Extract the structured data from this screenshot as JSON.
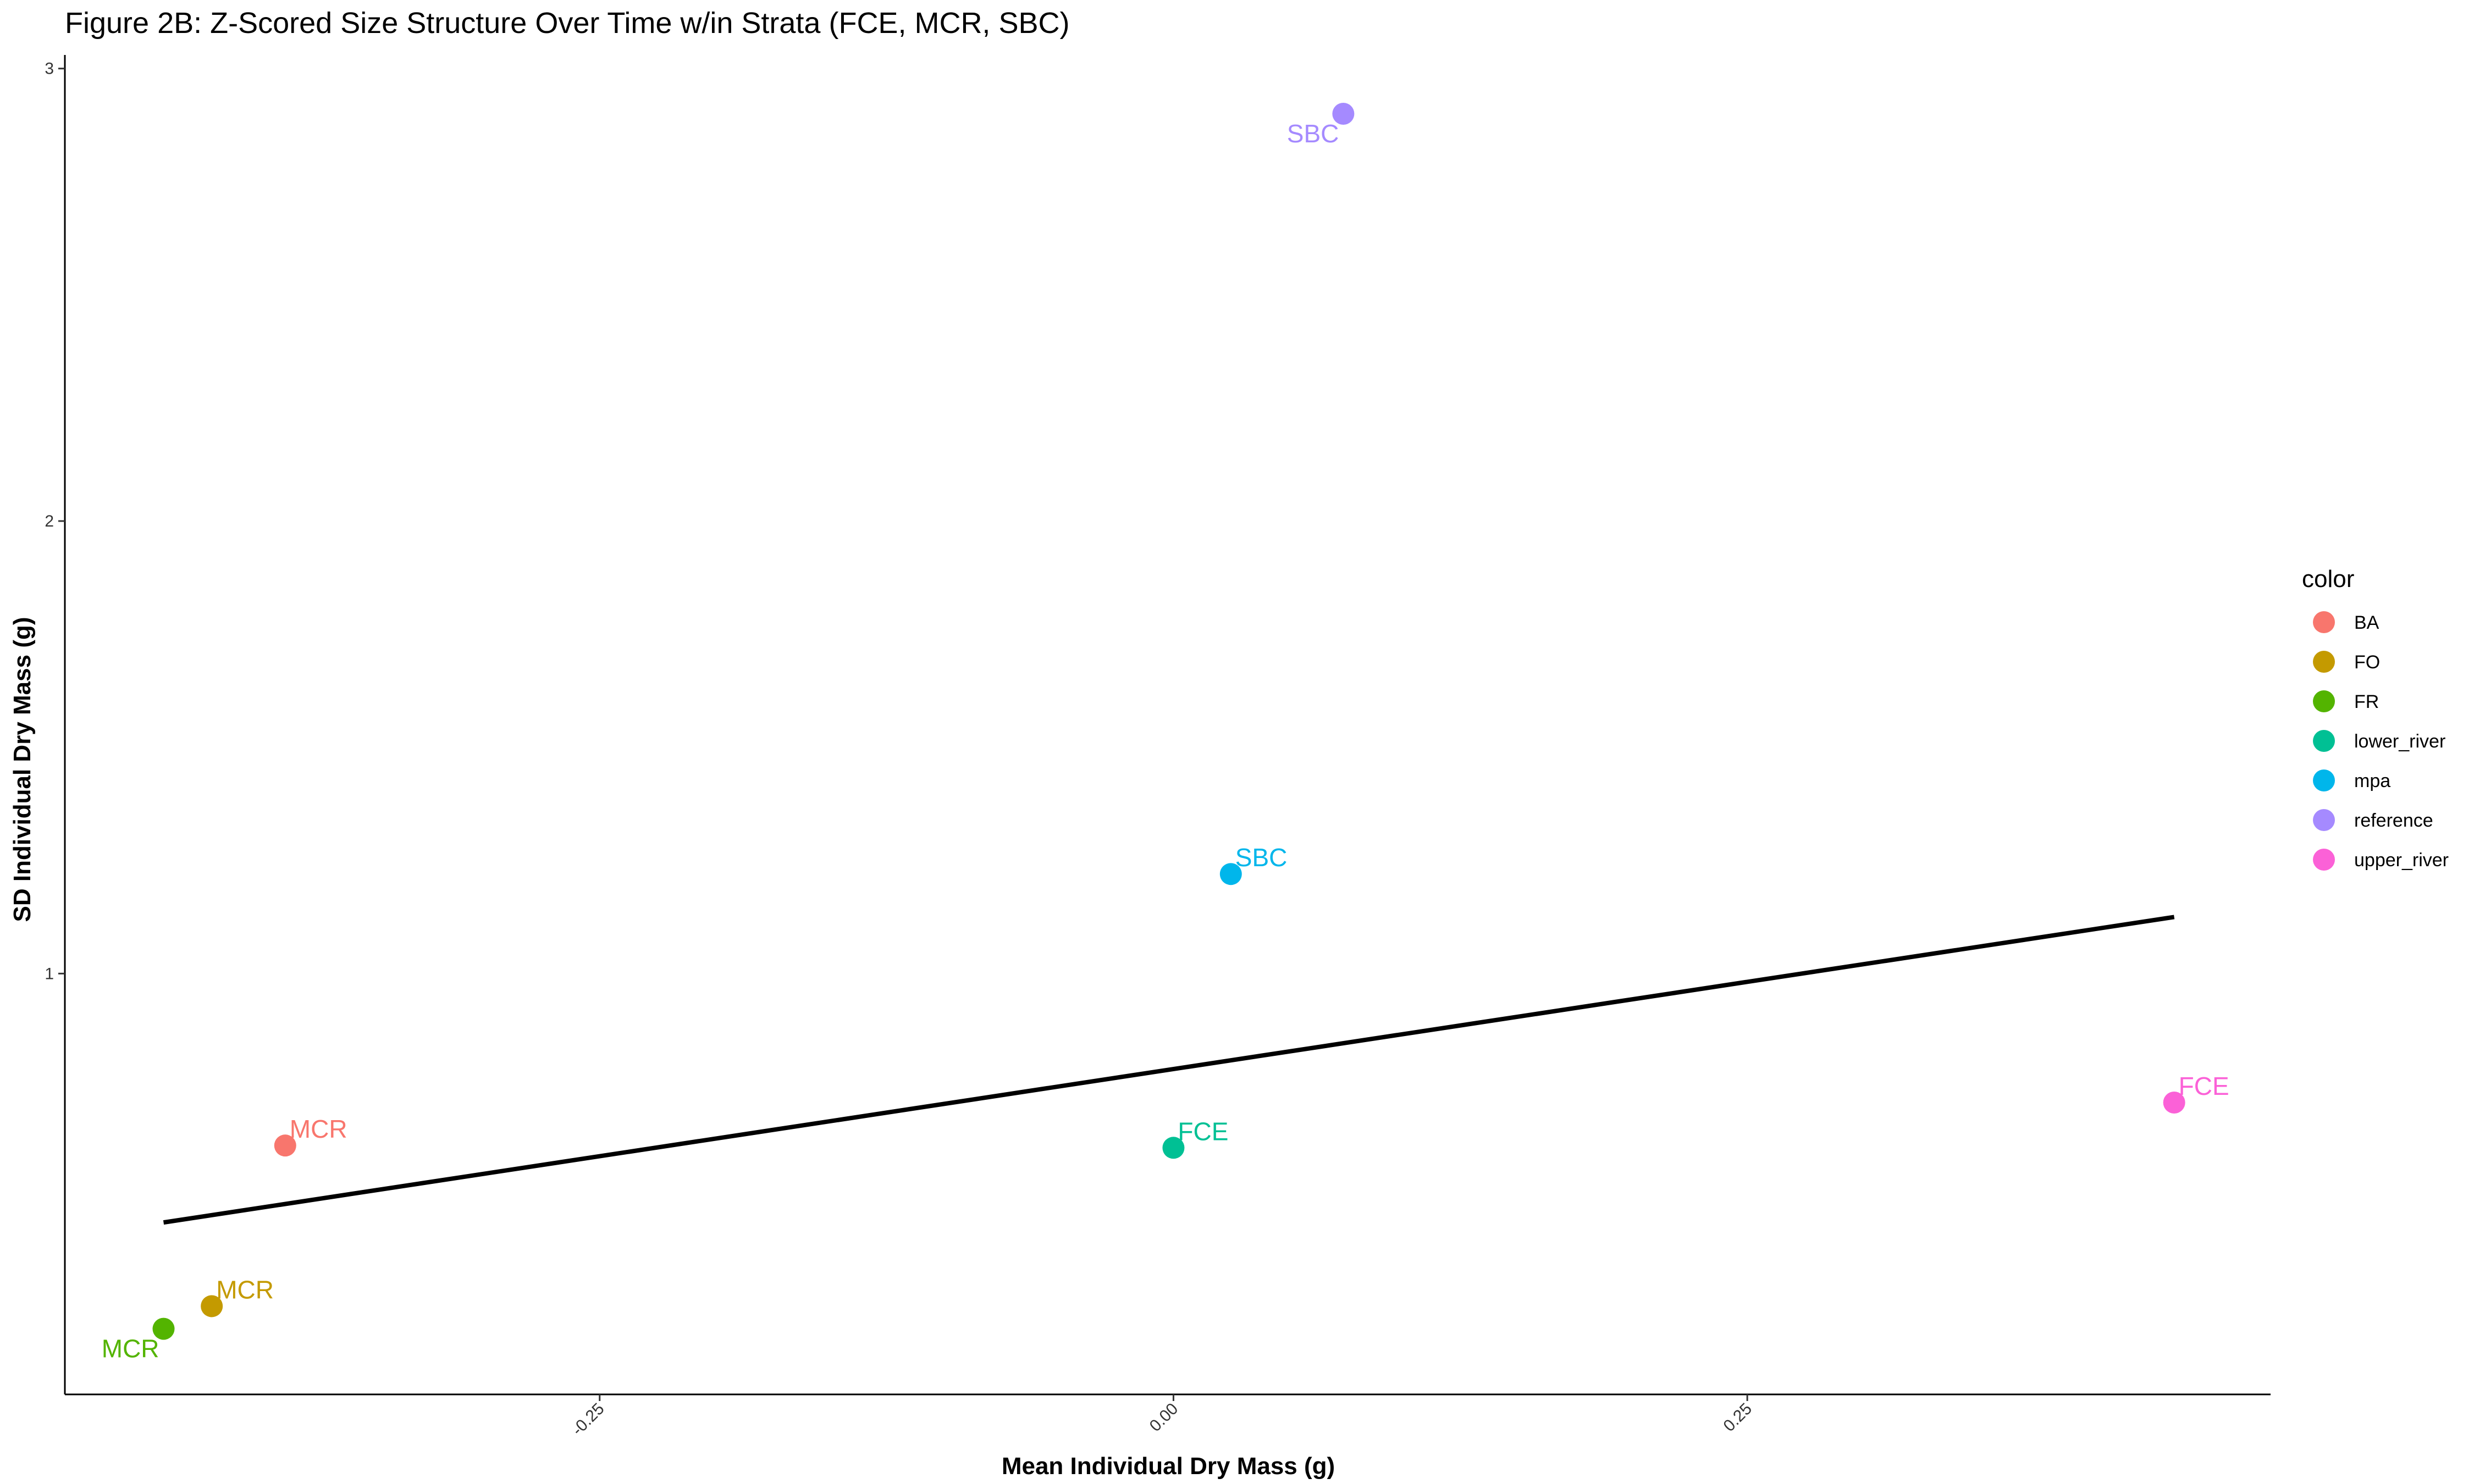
{
  "chart_data": {
    "type": "scatter",
    "title": "Figure 2B: Z-Scored Size Structure Over Time w/in Strata (FCE, MCR, SBC)",
    "xlabel": "Mean Individual Dry Mass (g)",
    "ylabel": "SD Individual Dry Mass (g)",
    "xlim": [
      -0.483,
      0.478
    ],
    "ylim": [
      0.07,
      3.03
    ],
    "x_ticks": [
      {
        "value": -0.25,
        "label": "-0.25"
      },
      {
        "value": 0.0,
        "label": "0.00"
      },
      {
        "value": 0.25,
        "label": "0.25"
      }
    ],
    "y_ticks": [
      {
        "value": 1,
        "label": "1"
      },
      {
        "value": 2,
        "label": "2"
      },
      {
        "value": 3,
        "label": "3"
      }
    ],
    "grid": false,
    "legend": {
      "title": "color",
      "placement": "right",
      "entries": [
        {
          "name": "BA",
          "color": "#F8766D"
        },
        {
          "name": "FO",
          "color": "#C49A00"
        },
        {
          "name": "FR",
          "color": "#53B400"
        },
        {
          "name": "lower_river",
          "color": "#00C094"
        },
        {
          "name": "mpa",
          "color": "#00B6EB"
        },
        {
          "name": "reference",
          "color": "#A58AFF"
        },
        {
          "name": "upper_river",
          "color": "#FB61D7"
        }
      ]
    },
    "points": [
      {
        "group": "BA",
        "label": "MCR",
        "x": -0.387,
        "y": 0.62,
        "label_side": "above-right"
      },
      {
        "group": "FO",
        "label": "MCR",
        "x": -0.419,
        "y": 0.265,
        "label_side": "above-right"
      },
      {
        "group": "FR",
        "label": "MCR",
        "x": -0.44,
        "y": 0.215,
        "label_side": "below-left"
      },
      {
        "group": "lower_river",
        "label": "FCE",
        "x": 0.0,
        "y": 0.615,
        "label_side": "above-right"
      },
      {
        "group": "mpa",
        "label": "SBC",
        "x": 0.025,
        "y": 1.22,
        "label_side": "above-right"
      },
      {
        "group": "reference",
        "label": "SBC",
        "x": 0.074,
        "y": 2.9,
        "label_side": "below-left"
      },
      {
        "group": "upper_river",
        "label": "FCE",
        "x": 0.436,
        "y": 0.715,
        "label_side": "above-right"
      }
    ],
    "trend_line": {
      "color": "#000000",
      "x": [
        -0.44,
        0.436
      ],
      "y": [
        0.45,
        1.125
      ]
    }
  }
}
